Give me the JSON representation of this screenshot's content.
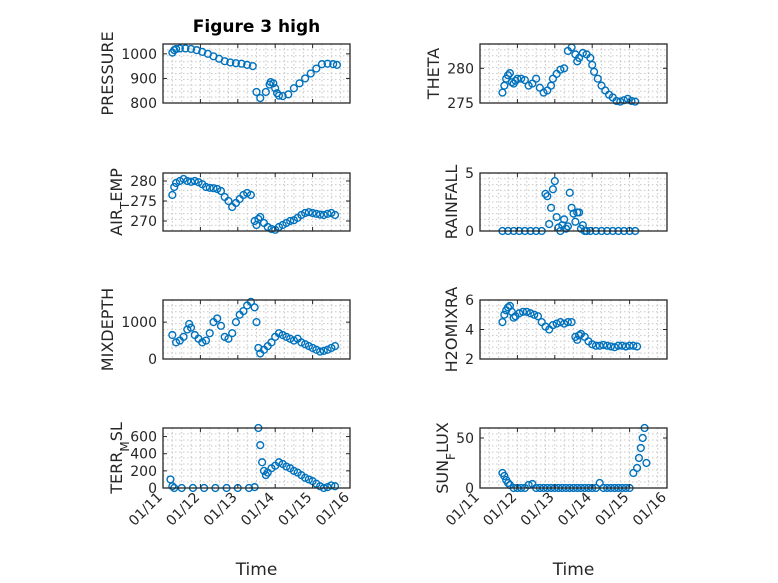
{
  "chart_data": [
    {
      "type": "scatter",
      "title": "Figure 3 high",
      "ylabel": "PRESSURE",
      "xlabel": "",
      "xlim": [
        0,
        5
      ],
      "ylim": [
        800,
        1040
      ],
      "yticks": [
        800,
        900,
        1000
      ],
      "yticklabels": [
        "800",
        "900",
        "1000"
      ],
      "xticks": [
        0,
        1,
        2,
        3,
        4,
        5
      ],
      "xticklabels": [
        "",
        "",
        "",
        "",
        "",
        ""
      ],
      "x": [
        0.25,
        0.3,
        0.35,
        0.45,
        0.6,
        0.75,
        0.9,
        1.05,
        1.2,
        1.35,
        1.5,
        1.65,
        1.8,
        1.95,
        2.1,
        2.25,
        2.4,
        2.5,
        2.6,
        2.75,
        2.85,
        2.88,
        2.95,
        3.0,
        3.05,
        3.1,
        3.2,
        3.35,
        3.5,
        3.65,
        3.8,
        3.95,
        4.1,
        4.25,
        4.4,
        4.55,
        4.65
      ],
      "y": [
        1005,
        1015,
        1020,
        1022,
        1022,
        1020,
        1015,
        1008,
        1000,
        990,
        980,
        970,
        965,
        962,
        960,
        955,
        950,
        845,
        820,
        845,
        875,
        885,
        880,
        860,
        840,
        830,
        828,
        835,
        860,
        880,
        900,
        920,
        940,
        958,
        960,
        958,
        955
      ],
      "color": "#0072BD"
    },
    {
      "type": "scatter",
      "title": "",
      "ylabel": "THETA",
      "xlabel": "",
      "xlim": [
        0,
        5
      ],
      "ylim": [
        275,
        283.5
      ],
      "yticks": [
        275,
        280
      ],
      "yticklabels": [
        "275",
        "280"
      ],
      "xticks": [
        0,
        1,
        2,
        3,
        4,
        5
      ],
      "xticklabels": [
        "",
        "",
        "",
        "",
        "",
        ""
      ],
      "x": [
        0.6,
        0.65,
        0.7,
        0.75,
        0.8,
        0.85,
        0.9,
        0.95,
        1.0,
        1.1,
        1.2,
        1.3,
        1.4,
        1.5,
        1.6,
        1.7,
        1.8,
        1.9,
        1.95,
        2.05,
        2.15,
        2.25,
        2.35,
        2.45,
        2.55,
        2.6,
        2.65,
        2.75,
        2.85,
        2.95,
        3.0,
        3.05,
        3.15,
        3.25,
        3.35,
        3.45,
        3.55,
        3.65,
        3.75,
        3.85,
        3.95,
        4.05,
        4.15
      ],
      "y": [
        276.5,
        277.5,
        278.5,
        279.0,
        279.3,
        278.0,
        277.8,
        278.2,
        278.5,
        278.5,
        278.3,
        277.5,
        277.8,
        278.5,
        277.2,
        276.5,
        276.8,
        277.5,
        278.5,
        279.2,
        279.8,
        280.0,
        282.5,
        283.0,
        282.0,
        281.0,
        281.5,
        282.2,
        282.0,
        281.5,
        280.5,
        279.5,
        278.5,
        277.5,
        276.8,
        276.2,
        275.8,
        275.3,
        275.2,
        275.4,
        275.6,
        275.3,
        275.2
      ],
      "color": "#0072BD"
    },
    {
      "type": "scatter",
      "title": "",
      "ylabel": "AIR_TEMP",
      "xlabel": "",
      "xlim": [
        0,
        5
      ],
      "ylim": [
        267.5,
        282
      ],
      "yticks": [
        270,
        275,
        280
      ],
      "yticklabels": [
        "270",
        "275",
        "280"
      ],
      "xticks": [
        0,
        1,
        2,
        3,
        4,
        5
      ],
      "xticklabels": [
        "",
        "",
        "",
        "",
        "",
        ""
      ],
      "x": [
        0.25,
        0.3,
        0.35,
        0.45,
        0.55,
        0.65,
        0.75,
        0.85,
        0.95,
        1.05,
        1.15,
        1.25,
        1.35,
        1.45,
        1.55,
        1.65,
        1.75,
        1.85,
        1.95,
        2.05,
        2.15,
        2.25,
        2.35,
        2.45,
        2.5,
        2.55,
        2.6,
        2.7,
        2.8,
        2.9,
        3.0,
        3.1,
        3.2,
        3.3,
        3.4,
        3.5,
        3.6,
        3.7,
        3.8,
        3.9,
        4.0,
        4.1,
        4.2,
        4.3,
        4.4,
        4.5,
        4.6
      ],
      "y": [
        276.5,
        278.5,
        279.5,
        280.0,
        280.5,
        280.0,
        279.8,
        280.0,
        279.7,
        279.2,
        278.5,
        278.3,
        278.2,
        278.0,
        277.5,
        276.0,
        275.0,
        273.5,
        274.5,
        275.5,
        276.5,
        277.0,
        276.5,
        270.0,
        269.0,
        270.5,
        271.0,
        269.5,
        268.5,
        268.0,
        267.8,
        268.5,
        269.0,
        269.5,
        270.0,
        270.2,
        270.8,
        271.5,
        272.0,
        272.2,
        272.0,
        271.8,
        271.6,
        271.5,
        271.8,
        272.0,
        271.5
      ],
      "color": "#0072BD"
    },
    {
      "type": "scatter",
      "title": "",
      "ylabel": "RAINFALL",
      "xlabel": "",
      "xlim": [
        0,
        5
      ],
      "ylim": [
        0,
        5
      ],
      "yticks": [
        0,
        5
      ],
      "yticklabels": [
        "0",
        "5"
      ],
      "xticks": [
        0,
        1,
        2,
        3,
        4,
        5
      ],
      "xticklabels": [
        "",
        "",
        "",
        "",
        "",
        ""
      ],
      "x": [
        0.6,
        0.75,
        0.9,
        1.05,
        1.2,
        1.35,
        1.5,
        1.65,
        1.75,
        1.8,
        1.85,
        1.9,
        1.95,
        2.0,
        2.05,
        2.1,
        2.15,
        2.2,
        2.25,
        2.3,
        2.35,
        2.4,
        2.45,
        2.5,
        2.55,
        2.6,
        2.65,
        2.7,
        2.75,
        2.8,
        2.85,
        2.95,
        3.1,
        3.25,
        3.4,
        3.55,
        3.7,
        3.85,
        4.0,
        4.15
      ],
      "y": [
        0,
        0,
        0,
        0,
        0,
        0,
        0,
        0,
        3.2,
        3.0,
        0.6,
        2.0,
        3.6,
        4.3,
        1.2,
        0.3,
        0,
        0.5,
        1.0,
        0.2,
        0.4,
        3.3,
        2.0,
        1.5,
        0.8,
        1.6,
        1.6,
        0.2,
        0.5,
        0,
        0,
        0,
        0,
        0,
        0,
        0,
        0,
        0,
        0,
        0
      ],
      "color": "#0072BD"
    },
    {
      "type": "scatter",
      "title": "",
      "ylabel": "MIXDEPTH",
      "xlabel": "",
      "xlim": [
        0,
        5
      ],
      "ylim": [
        0,
        1600
      ],
      "yticks": [
        0,
        1000
      ],
      "yticklabels": [
        "0",
        "1000"
      ],
      "xticks": [
        0,
        1,
        2,
        3,
        4,
        5
      ],
      "xticklabels": [
        "",
        "",
        "",
        "",
        "",
        ""
      ],
      "x": [
        0.25,
        0.35,
        0.45,
        0.55,
        0.65,
        0.7,
        0.75,
        0.85,
        0.95,
        1.05,
        1.15,
        1.25,
        1.35,
        1.45,
        1.55,
        1.65,
        1.75,
        1.85,
        1.95,
        2.05,
        2.15,
        2.25,
        2.35,
        2.45,
        2.5,
        2.55,
        2.6,
        2.7,
        2.8,
        2.9,
        3.0,
        3.1,
        3.2,
        3.3,
        3.4,
        3.5,
        3.6,
        3.7,
        3.8,
        3.9,
        4.0,
        4.1,
        4.2,
        4.3,
        4.4,
        4.5,
        4.6
      ],
      "y": [
        650,
        450,
        500,
        600,
        800,
        950,
        850,
        650,
        550,
        450,
        500,
        700,
        1000,
        1100,
        900,
        600,
        550,
        700,
        1000,
        1200,
        1300,
        1450,
        1550,
        1400,
        1000,
        300,
        150,
        250,
        350,
        450,
        600,
        700,
        650,
        600,
        550,
        500,
        550,
        450,
        400,
        350,
        300,
        250,
        200,
        220,
        250,
        300,
        350
      ],
      "color": "#0072BD"
    },
    {
      "type": "scatter",
      "title": "",
      "ylabel": "H2OMIXRA",
      "xlabel": "",
      "xlim": [
        0,
        5
      ],
      "ylim": [
        2,
        6
      ],
      "yticks": [
        2,
        4,
        6
      ],
      "yticklabels": [
        "2",
        "4",
        "6"
      ],
      "xticks": [
        0,
        1,
        2,
        3,
        4,
        5
      ],
      "xticklabels": [
        "",
        "",
        "",
        "",
        "",
        ""
      ],
      "x": [
        0.6,
        0.65,
        0.7,
        0.75,
        0.8,
        0.85,
        0.9,
        0.95,
        1.05,
        1.15,
        1.25,
        1.35,
        1.45,
        1.55,
        1.65,
        1.75,
        1.85,
        1.95,
        2.05,
        2.15,
        2.25,
        2.35,
        2.45,
        2.55,
        2.6,
        2.65,
        2.7,
        2.8,
        2.9,
        3.0,
        3.1,
        3.2,
        3.3,
        3.4,
        3.5,
        3.6,
        3.7,
        3.8,
        3.9,
        4.0,
        4.1,
        4.2
      ],
      "y": [
        4.5,
        5.0,
        5.3,
        5.5,
        5.6,
        5.2,
        4.8,
        4.9,
        5.1,
        5.2,
        5.2,
        5.1,
        5.0,
        4.9,
        4.5,
        4.2,
        4.0,
        4.3,
        4.4,
        4.5,
        4.4,
        4.5,
        4.5,
        3.5,
        3.3,
        3.6,
        3.7,
        3.5,
        3.2,
        3.0,
        2.9,
        2.9,
        2.95,
        2.9,
        2.85,
        2.8,
        2.9,
        2.9,
        2.85,
        2.9,
        2.9,
        2.85
      ],
      "color": "#0072BD"
    },
    {
      "type": "scatter",
      "title": "",
      "ylabel": "TERR_MSL",
      "xlabel": "Time",
      "xlim": [
        0,
        5
      ],
      "ylim": [
        0,
        700
      ],
      "yticks": [
        0,
        200,
        400,
        600
      ],
      "yticklabels": [
        "0",
        "200",
        "400",
        "600"
      ],
      "xticks": [
        0,
        1,
        2,
        3,
        4,
        5
      ],
      "xticklabels": [
        "01/11",
        "01/12",
        "01/13",
        "01/14",
        "01/15",
        "01/16"
      ],
      "x": [
        0.2,
        0.25,
        0.3,
        0.5,
        0.8,
        1.1,
        1.4,
        1.7,
        2.0,
        2.3,
        2.45,
        2.55,
        2.6,
        2.65,
        2.7,
        2.75,
        2.8,
        2.9,
        3.0,
        3.1,
        3.2,
        3.3,
        3.4,
        3.5,
        3.6,
        3.7,
        3.8,
        3.9,
        4.0,
        4.1,
        4.2,
        4.3,
        4.4,
        4.5,
        4.6
      ],
      "y": [
        100,
        20,
        0,
        0,
        0,
        0,
        0,
        0,
        0,
        0,
        10,
        700,
        500,
        300,
        200,
        150,
        180,
        230,
        260,
        300,
        280,
        250,
        230,
        200,
        180,
        150,
        120,
        100,
        80,
        50,
        20,
        0,
        10,
        30,
        20
      ],
      "color": "#0072BD"
    },
    {
      "type": "scatter",
      "title": "",
      "ylabel": "SUN_FLUX",
      "xlabel": "Time",
      "xlim": [
        0,
        5
      ],
      "ylim": [
        0,
        60
      ],
      "yticks": [
        0,
        50
      ],
      "yticklabels": [
        "0",
        "50"
      ],
      "xticks": [
        0,
        1,
        2,
        3,
        4,
        5
      ],
      "xticklabels": [
        "01/11",
        "01/12",
        "01/13",
        "01/14",
        "01/15",
        "01/16"
      ],
      "x": [
        0.6,
        0.65,
        0.7,
        0.75,
        0.8,
        0.9,
        1.0,
        1.1,
        1.2,
        1.3,
        1.4,
        1.5,
        1.6,
        1.7,
        1.8,
        1.9,
        2.0,
        2.1,
        2.2,
        2.3,
        2.4,
        2.5,
        2.6,
        2.7,
        2.8,
        2.9,
        3.0,
        3.1,
        3.2,
        3.3,
        3.4,
        3.5,
        3.6,
        3.7,
        3.8,
        3.9,
        4.0,
        4.1,
        4.2,
        4.25,
        4.3,
        4.35,
        4.4,
        4.45
      ],
      "y": [
        15,
        12,
        8,
        5,
        3,
        0,
        0,
        0,
        0,
        3,
        4,
        0,
        0,
        0,
        0,
        0,
        0,
        0,
        0,
        0,
        0,
        0,
        0,
        0,
        0,
        0,
        0,
        0,
        5,
        0,
        0,
        0,
        0,
        0,
        0,
        0,
        0,
        15,
        20,
        30,
        40,
        50,
        60,
        25
      ],
      "color": "#0072BD"
    }
  ]
}
